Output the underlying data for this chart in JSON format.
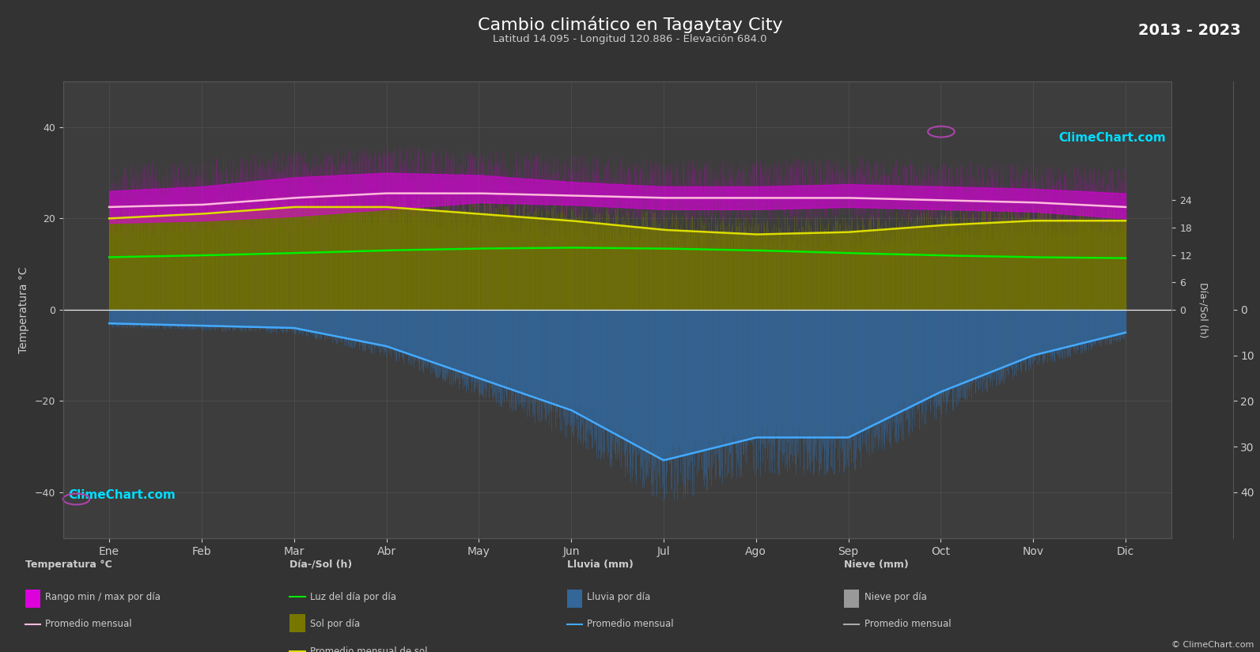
{
  "title": "Cambio climático en Tagaytay City",
  "subtitle": "Latitud 14.095 - Longitud 120.886 - Elevación 684.0",
  "year_range": "2013 - 2023",
  "background_color": "#333333",
  "plot_bg_color": "#3d3d3d",
  "grid_color": "#555555",
  "text_color": "#cccccc",
  "months": [
    "Ene",
    "Feb",
    "Mar",
    "Abr",
    "May",
    "Jun",
    "Jul",
    "Ago",
    "Sep",
    "Oct",
    "Nov",
    "Dic"
  ],
  "ylim_left": [
    -50,
    50
  ],
  "temp_min_avg": [
    19.0,
    19.5,
    20.5,
    22.0,
    23.5,
    23.0,
    22.0,
    22.0,
    22.5,
    22.0,
    21.5,
    20.0
  ],
  "temp_max_avg": [
    26.0,
    27.0,
    29.0,
    30.0,
    29.5,
    28.0,
    27.0,
    27.0,
    27.5,
    27.0,
    26.5,
    25.5
  ],
  "temp_avg": [
    22.5,
    23.0,
    24.5,
    25.5,
    25.5,
    25.0,
    24.5,
    24.5,
    24.5,
    24.0,
    23.5,
    22.5
  ],
  "daylight_avg": [
    11.5,
    11.9,
    12.4,
    13.0,
    13.4,
    13.6,
    13.4,
    13.0,
    12.4,
    11.9,
    11.5,
    11.3
  ],
  "sunshine_avg": [
    20.0,
    21.0,
    22.5,
    22.5,
    21.0,
    19.5,
    17.5,
    16.5,
    17.0,
    18.5,
    19.5,
    19.5
  ],
  "rain_avg_neg": [
    -3.0,
    -3.5,
    -4.0,
    -8.0,
    -15.0,
    -22.0,
    -33.0,
    -28.0,
    -28.0,
    -18.0,
    -10.0,
    -5.0
  ],
  "colors": {
    "temp_min_max_fill": "#dd00dd",
    "temp_avg_line": "#ffbbdd",
    "daylight_line": "#00ee00",
    "sunshine_fill": "#777700",
    "sunshine_line": "#dddd00",
    "rain_fill": "#336699",
    "rain_line": "#44aaff",
    "snow_fill": "#999999",
    "scatter_magenta": "#cc00cc",
    "scatter_olive": "#777700",
    "scatter_blue": "#336699"
  },
  "legend": {
    "col1_title": "Temperatura °C",
    "col1_item1": "Rango min / max por día",
    "col1_item2": "Promedio mensual",
    "col2_title": "Día-/Sol (h)",
    "col2_item1": "Luz del día por día",
    "col2_item2": "Sol por día",
    "col2_item3": "Promedio mensual de sol",
    "col3_title": "Lluvia (mm)",
    "col3_item1": "Lluvia por día",
    "col3_item2": "Promedio mensual",
    "col4_title": "Nieve (mm)",
    "col4_item1": "Nieve por día",
    "col4_item2": "Promedio mensual"
  }
}
